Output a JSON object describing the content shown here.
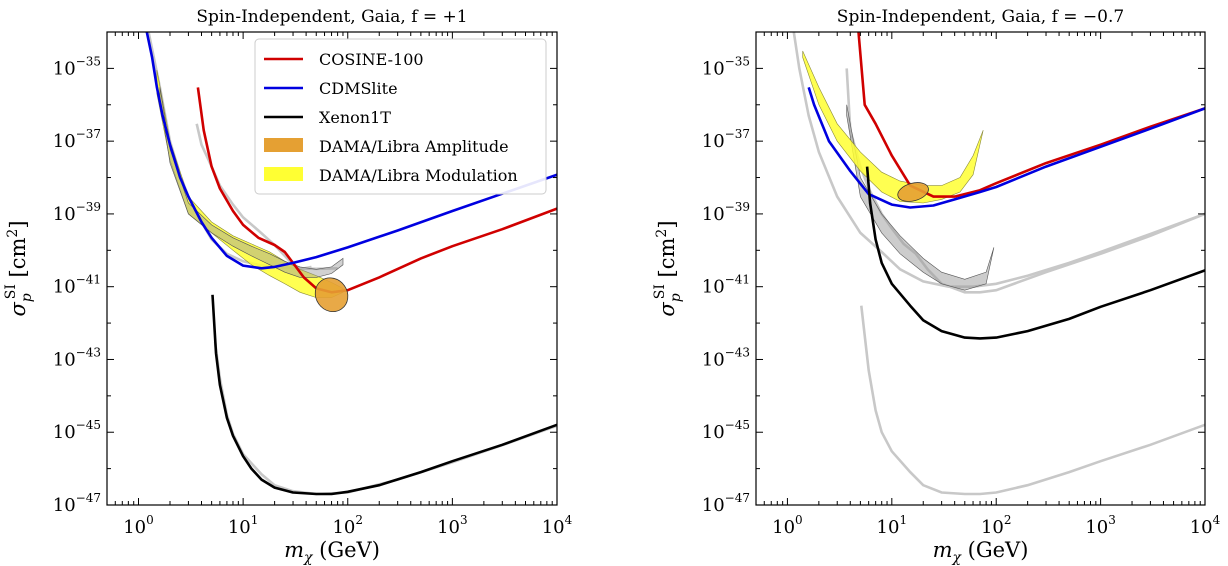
{
  "chart_data": [
    {
      "type": "line",
      "title": "Spin-Independent, Gaia, f = +1",
      "xlabel": "m_χ (GeV)",
      "ylabel": "σ_p^SI [cm²]",
      "xscale": "log",
      "yscale": "log",
      "xlim": [
        0.5,
        10000
      ],
      "ylim": [
        1e-47,
        1e-34
      ],
      "x_tick_labels": [
        "10^0",
        "10^1",
        "10^2",
        "10^3",
        "10^4"
      ],
      "y_tick_labels": [
        "10^-35",
        "10^-37",
        "10^-39",
        "10^-41",
        "10^-43",
        "10^-45",
        "10^-47"
      ],
      "legend": {
        "placement": "top-center",
        "entries": [
          {
            "label": "COSINE-100",
            "kind": "line",
            "color": "#d00000"
          },
          {
            "label": "CDMSlite",
            "kind": "line",
            "color": "#0000e0"
          },
          {
            "label": "Xenon1T",
            "kind": "line",
            "color": "#000000"
          },
          {
            "label": "DAMA/Libra Amplitude",
            "kind": "patch",
            "color": "#e5a033"
          },
          {
            "label": "DAMA/Libra Modulation",
            "kind": "patch",
            "color": "#ffff33"
          }
        ]
      },
      "series": [
        {
          "name": "COSINE-100",
          "color": "#d00000",
          "x": [
            3.7,
            4.2,
            5,
            6,
            8,
            10,
            14,
            20,
            25,
            30,
            38,
            50,
            70,
            100,
            200,
            500,
            1000,
            3000,
            10000
          ],
          "y": [
            3e-36,
            2e-37,
            2e-38,
            5e-39,
            1.2e-39,
            5e-40,
            2.2e-40,
            1.4e-40,
            9e-41,
            4.5e-41,
            1.8e-41,
            9e-42,
            7e-42,
            8e-42,
            1.8e-41,
            6e-41,
            1.3e-40,
            3.8e-40,
            1.4e-39
          ]
        },
        {
          "name": "CDMSlite",
          "color": "#0000e0",
          "x": [
            1.2,
            1.35,
            1.5,
            1.7,
            2,
            2.5,
            3,
            4,
            5,
            7,
            10,
            15,
            20,
            30,
            50,
            100,
            300,
            1000,
            3000,
            10000
          ],
          "y": [
            1e-34,
            2e-35,
            3e-36,
            5e-37,
            8e-38,
            1e-38,
            3e-39,
            6e-40,
            2.2e-40,
            7e-41,
            3.8e-41,
            3.2e-41,
            3.5e-41,
            4.5e-41,
            6.5e-41,
            1.2e-40,
            3.5e-40,
            1.2e-39,
            3.6e-39,
            1.2e-38
          ]
        },
        {
          "name": "Xenon1T",
          "color": "#000000",
          "x": [
            5.1,
            5.5,
            6,
            7,
            8,
            10,
            12,
            15,
            20,
            30,
            50,
            70,
            100,
            200,
            500,
            1000,
            3000,
            10000
          ],
          "y": [
            6e-42,
            1.5e-43,
            2e-44,
            2.5e-45,
            8e-46,
            2.2e-46,
            1e-46,
            5e-47,
            3e-47,
            2.2e-47,
            2e-47,
            2e-47,
            2.3e-47,
            3.5e-47,
            8e-47,
            1.6e-46,
            4.5e-46,
            1.6e-45
          ]
        }
      ],
      "reference_curves": {
        "color": "#c8c8c8",
        "curves": [
          {
            "x": [
              1.25,
              1.4,
              1.6,
              2,
              2.5,
              3,
              4,
              5,
              7,
              10,
              14,
              20,
              30,
              50,
              80
            ],
            "y": [
              1e-34,
              2e-35,
              3e-36,
              1e-37,
              1.2e-38,
              3e-39,
              6e-40,
              2e-40,
              8e-41,
              5e-41,
              4e-41,
              3.5e-41,
              3.2e-41,
              3.1e-41,
              3.2e-41
            ]
          },
          {
            "x": [
              3.6,
              4,
              5,
              6,
              8,
              10,
              14,
              20,
              28,
              35,
              45
            ],
            "y": [
              3e-37,
              8e-38,
              2e-38,
              6e-39,
              1.8e-39,
              8e-40,
              3.5e-40,
              1.4e-40,
              5e-41,
              3e-41,
              3.5e-41
            ]
          },
          {
            "x": [
              5.4,
              6,
              7,
              8,
              10,
              15,
              20,
              30,
              50,
              100,
              300,
              1000,
              3000,
              10000
            ],
            "y": [
              3e-43,
              3e-44,
              3e-45,
              9e-46,
              2.5e-46,
              7e-47,
              3.5e-47,
              2.4e-47,
              2e-47,
              2.2e-47,
              5e-47,
              1.5e-46,
              4.4e-46,
              1.5e-45
            ]
          }
        ]
      },
      "regions": [
        {
          "name": "DAMA/Libra Modulation",
          "color": "#ffff33",
          "x_upper": [
            1.5,
            2,
            3,
            5,
            8,
            12,
            18,
            25,
            35,
            50,
            70,
            90
          ],
          "y_upper": [
            9e-36,
            1e-37,
            3e-39,
            6e-40,
            2.5e-40,
            1.5e-40,
            9e-41,
            5e-41,
            3e-41,
            2e-41,
            1.3e-41,
            9e-42
          ],
          "x_lower": [
            1.5,
            2,
            3,
            5,
            8,
            12,
            18,
            25,
            35,
            50,
            70,
            90
          ],
          "y_lower": [
            2e-36,
            3e-38,
            1e-39,
            3e-40,
            1e-40,
            4e-41,
            2e-41,
            1.2e-41,
            7e-42,
            5e-42,
            5e-42,
            7e-42
          ]
        },
        {
          "name": "Gaia modulation (grey)",
          "color": "#999999",
          "x_upper": [
            1.6,
            2,
            3,
            5,
            8,
            12,
            18,
            25,
            35,
            50,
            70,
            90
          ],
          "y_upper": [
            3e-36,
            6e-38,
            2e-39,
            5e-40,
            2.2e-40,
            1.3e-40,
            8e-41,
            5e-41,
            3.5e-41,
            3e-41,
            3.5e-41,
            6e-41
          ],
          "x_lower": [
            1.6,
            2,
            3,
            5,
            8,
            12,
            18,
            25,
            35,
            50,
            70,
            90
          ],
          "y_lower": [
            1.5e-36,
            2.5e-38,
            1e-39,
            3e-40,
            1.3e-40,
            7e-41,
            4e-41,
            2.5e-41,
            1.8e-41,
            1.8e-41,
            2.3e-41,
            4e-41
          ]
        },
        {
          "name": "DAMA/Libra Amplitude",
          "color": "#e5a033",
          "type": "ellipse",
          "center": [
            70,
            6e-42
          ],
          "x_span": [
            50,
            100
          ],
          "y_span": [
            2e-42,
            1.8e-41
          ]
        }
      ]
    },
    {
      "type": "line",
      "title": "Spin-Independent, Gaia, f = −0.7",
      "xlabel": "m_χ (GeV)",
      "ylabel": "σ_p^SI [cm²]",
      "xscale": "log",
      "yscale": "log",
      "xlim": [
        0.5,
        10000
      ],
      "ylim": [
        1e-47,
        1e-34
      ],
      "x_tick_labels": [
        "10^0",
        "10^1",
        "10^2",
        "10^3",
        "10^4"
      ],
      "y_tick_labels": [
        "10^-35",
        "10^-37",
        "10^-39",
        "10^-41",
        "10^-43",
        "10^-45",
        "10^-47"
      ],
      "series": [
        {
          "name": "COSINE-100",
          "color": "#d00000",
          "x": [
            4.8,
            5.5,
            7,
            10,
            15,
            25,
            40,
            70,
            100,
            300,
            1000,
            3000,
            10000
          ],
          "y": [
            1e-34,
            1e-36,
            3e-37,
            4e-38,
            6e-39,
            3e-39,
            3e-39,
            4.5e-39,
            7e-39,
            2.5e-38,
            8e-38,
            2.5e-37,
            8e-37
          ]
        },
        {
          "name": "CDMSlite",
          "color": "#0000e0",
          "x": [
            1.6,
            1.8,
            2.5,
            4,
            6,
            10,
            15,
            25,
            40,
            70,
            100,
            300,
            1000,
            3000,
            10000
          ],
          "y": [
            3e-36,
            1e-36,
            1e-37,
            1.5e-38,
            3.5e-39,
            1.8e-39,
            1.5e-39,
            1.7e-39,
            2.5e-39,
            4e-39,
            5.5e-39,
            2e-38,
            7e-38,
            2.2e-37,
            8e-37
          ]
        },
        {
          "name": "Xenon1T",
          "color": "#000000",
          "x": [
            5.8,
            6.2,
            7,
            8,
            10,
            15,
            20,
            30,
            50,
            70,
            100,
            200,
            500,
            1000,
            3000,
            10000
          ],
          "y": [
            2e-38,
            2e-39,
            2e-40,
            4.5e-41,
            1.2e-41,
            3e-42,
            1.2e-42,
            6e-43,
            4e-43,
            3.8e-43,
            4e-43,
            6e-43,
            1.3e-42,
            2.8e-42,
            8e-42,
            2.8e-41
          ]
        }
      ],
      "reference_curves": {
        "color": "#c8c8c8",
        "curves": [
          {
            "x": [
              1.15,
              1.3,
              1.6,
              2,
              3,
              5,
              8,
              12,
              20,
              35,
              60,
              100,
              200,
              500,
              1000,
              3000,
              10000
            ],
            "y": [
              1e-34,
              1e-35,
              5e-37,
              5e-38,
              3e-39,
              3e-40,
              9e-41,
              3e-41,
              1.4e-41,
              1e-41,
              1e-41,
              1.2e-41,
              2e-41,
              4.5e-41,
              9e-41,
              2.8e-40,
              1e-39
            ]
          },
          {
            "x": [
              3.7,
              4,
              5,
              6,
              8,
              10,
              13,
              17,
              22,
              30,
              50,
              70,
              100,
              300,
              1000,
              3000,
              10000
            ],
            "y": [
              1e-35,
              2e-37,
              2e-38,
              5e-39,
              1e-39,
              4e-40,
              1.5e-40,
              8e-41,
              3e-41,
              1.2e-41,
              7e-42,
              7e-42,
              8e-42,
              2.5e-41,
              8e-41,
              2.5e-40,
              1e-39
            ]
          },
          {
            "x": [
              5.1,
              6,
              7,
              8,
              10,
              15,
              20,
              30,
              50,
              70,
              100,
              200,
              500,
              1000,
              3000,
              10000
            ],
            "y": [
              3e-42,
              5e-44,
              4e-45,
              1e-45,
              3e-46,
              8e-47,
              3.5e-47,
              2.2e-47,
              2e-47,
              2e-47,
              2.2e-47,
              3.5e-47,
              8e-47,
              1.6e-46,
              4.5e-46,
              1.6e-45
            ]
          }
        ]
      },
      "regions": [
        {
          "name": "DAMA/Libra Modulation",
          "color": "#ffff33",
          "x_upper": [
            1.4,
            2,
            3,
            5,
            8,
            12,
            20,
            30,
            45,
            60,
            75
          ],
          "y_upper": [
            3e-35,
            3e-36,
            3e-37,
            5e-38,
            1.4e-38,
            8e-39,
            6e-39,
            6e-39,
            1e-38,
            4e-38,
            2e-37
          ],
          "x_lower": [
            1.4,
            2,
            3,
            5,
            8,
            12,
            20,
            30,
            45,
            60,
            75
          ],
          "y_lower": [
            2e-35,
            1e-36,
            1e-37,
            1.5e-38,
            4e-39,
            2.2e-39,
            2e-39,
            2.5e-39,
            4e-39,
            1.2e-38,
            2e-37
          ]
        },
        {
          "name": "Gaia modulation (grey)",
          "color": "#999999",
          "x_upper": [
            3.7,
            5,
            8,
            12,
            20,
            30,
            50,
            80,
            95
          ],
          "y_upper": [
            1e-36,
            1e-38,
            1e-39,
            2.5e-40,
            6e-41,
            2.5e-41,
            1.6e-41,
            2.5e-41,
            1.2e-40
          ],
          "x_lower": [
            3.7,
            5,
            8,
            12,
            20,
            30,
            50,
            80,
            95
          ],
          "y_lower": [
            5e-37,
            3e-39,
            3e-40,
            8e-41,
            2.5e-41,
            1.2e-41,
            8e-42,
            1.2e-41,
            1.2e-40
          ]
        },
        {
          "name": "DAMA/Libra Amplitude",
          "color": "#e5a033",
          "type": "ellipse",
          "center": [
            16,
            4e-39
          ],
          "x_span": [
            11,
            22
          ],
          "y_span": [
            2.3e-39,
            7e-39
          ]
        }
      ]
    }
  ]
}
